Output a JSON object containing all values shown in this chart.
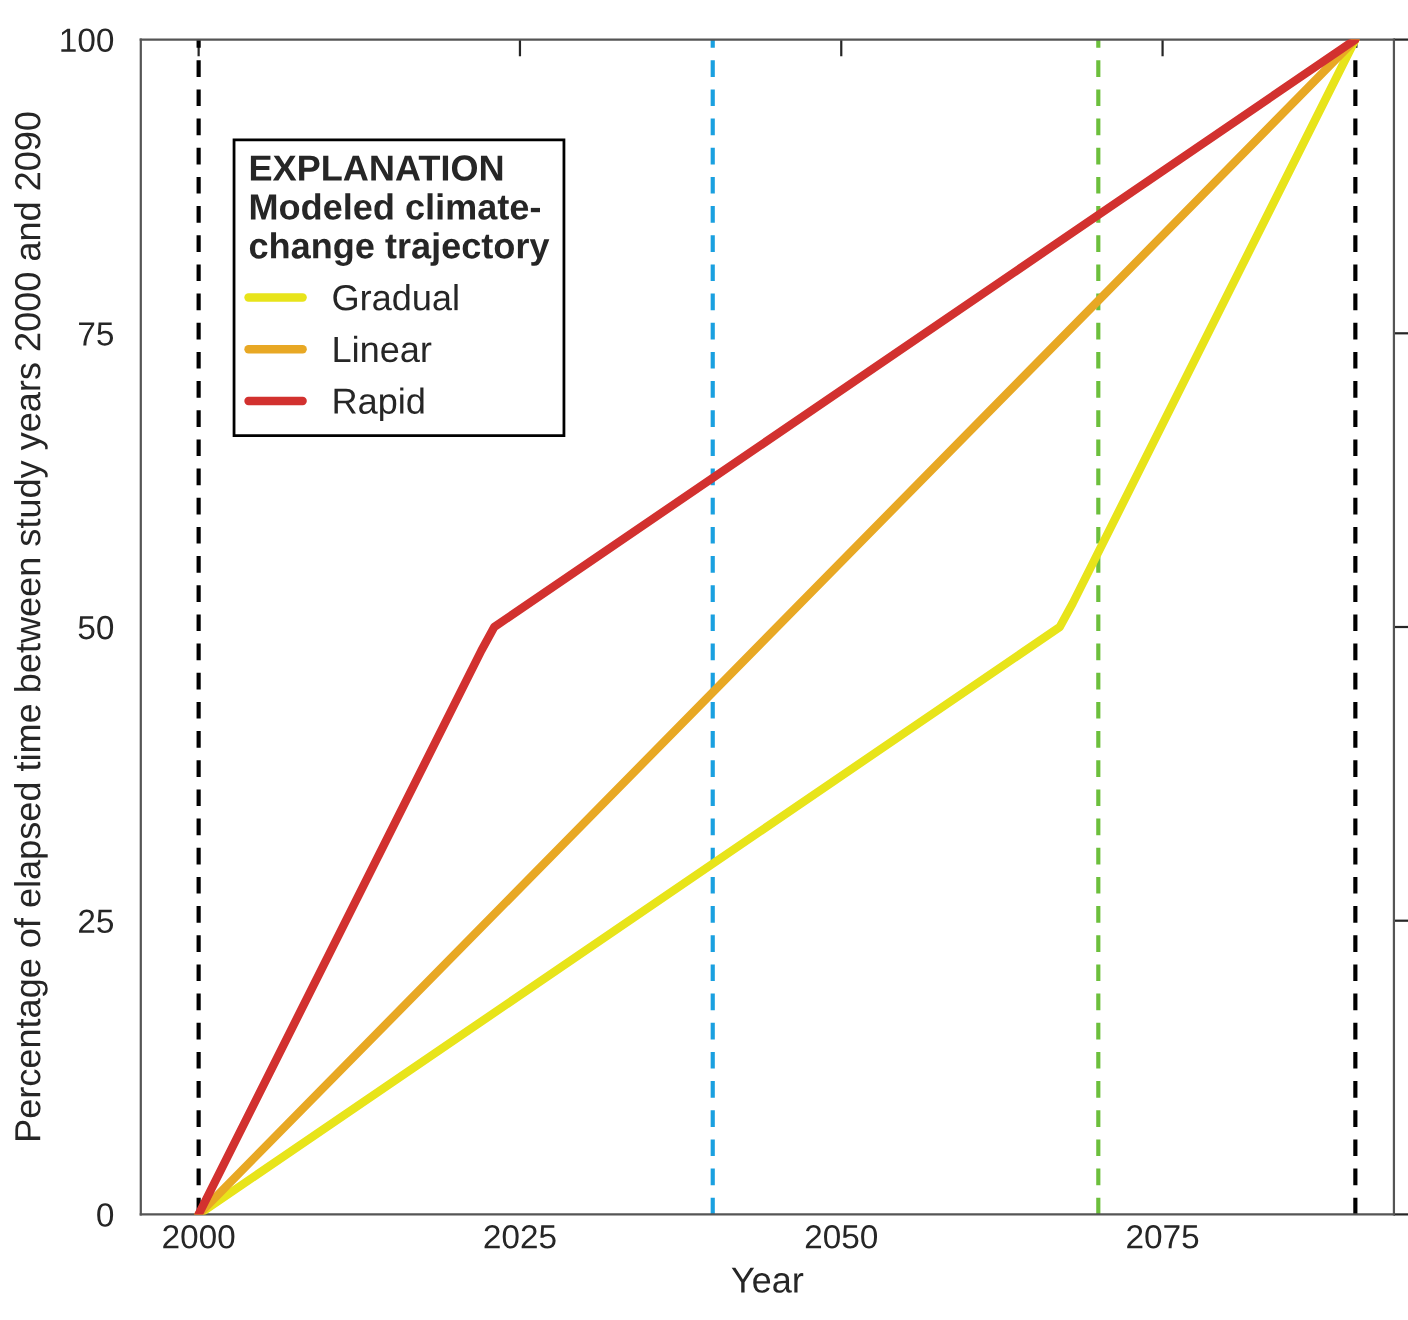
{
  "chart_data": {
    "type": "line",
    "xlabel": "Year",
    "ylabel": "Percentage of elapsed time between study years 2000 and 2090",
    "legend_title": "EXPLANATION\nModeled climate-\nchange trajectory",
    "legend": "top left",
    "line_style": "solid",
    "marker": "none",
    "grid": false,
    "xlim": [
      1995.5,
      2093
    ],
    "xticks": [
      2000,
      2025,
      2050,
      2075
    ],
    "ylim": [
      0,
      100
    ],
    "yticks": [
      0,
      25,
      50,
      75,
      100
    ],
    "series": [
      {
        "name": "Gradual",
        "color": "#e8e41a",
        "x": [
          2000,
          2067,
          2068,
          2090
        ],
        "values": [
          0,
          50,
          52,
          100
        ]
      },
      {
        "name": "Linear",
        "color": "#e8a824",
        "x": [
          2000,
          2090
        ],
        "values": [
          0,
          100
        ]
      },
      {
        "name": "Rapid",
        "color": "#d2312f",
        "x": [
          2000,
          2022,
          2023,
          2090
        ],
        "values": [
          0,
          48,
          50,
          100
        ]
      }
    ],
    "ref_lines": [
      {
        "axis": "x",
        "value": 2000,
        "color": "#000000",
        "line_style": "dashed"
      },
      {
        "axis": "x",
        "value": 2040,
        "color": "#1aa0e0",
        "line_style": "dashed"
      },
      {
        "axis": "x",
        "value": 2070,
        "color": "#6cbf3c",
        "line_style": "dashed"
      },
      {
        "axis": "x",
        "value": 2090,
        "color": "#000000",
        "line_style": "dashed"
      }
    ]
  }
}
